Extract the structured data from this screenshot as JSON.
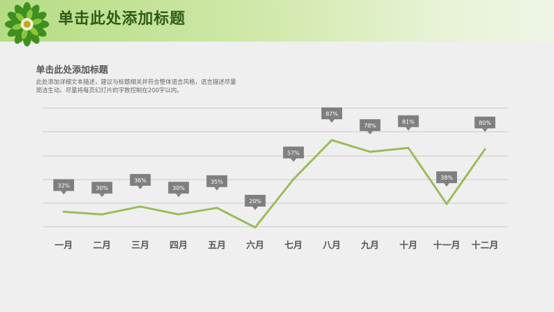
{
  "header": {
    "title": "单击此处添加标题"
  },
  "section": {
    "title": "单击此处添加标题",
    "description": "此处添加详细文本描述，建议与标题相关并符合整体语言风格，语言描述尽量简洁生动。尽量将每页幻灯片的字数控制在200字以内。"
  },
  "colors": {
    "line": "#9bbb59",
    "label_box": "#7f7f7f",
    "grid": "#c8c8c8",
    "header_text": "#2d5a17"
  },
  "chart_data": {
    "type": "line",
    "categories": [
      "一月",
      "二月",
      "三月",
      "四月",
      "五月",
      "六月",
      "七月",
      "八月",
      "九月",
      "十月",
      "十一月",
      "十二月"
    ],
    "series": [
      {
        "values": [
          32,
          30,
          36,
          30,
          35,
          20,
          57,
          87,
          78,
          81,
          38,
          80
        ]
      }
    ],
    "data_labels": [
      "32%",
      "30%",
      "36%",
      "30%",
      "35%",
      "20%",
      "57%",
      "87%",
      "78%",
      "81%",
      "38%",
      "80%"
    ],
    "grid": true,
    "legend": "none"
  }
}
